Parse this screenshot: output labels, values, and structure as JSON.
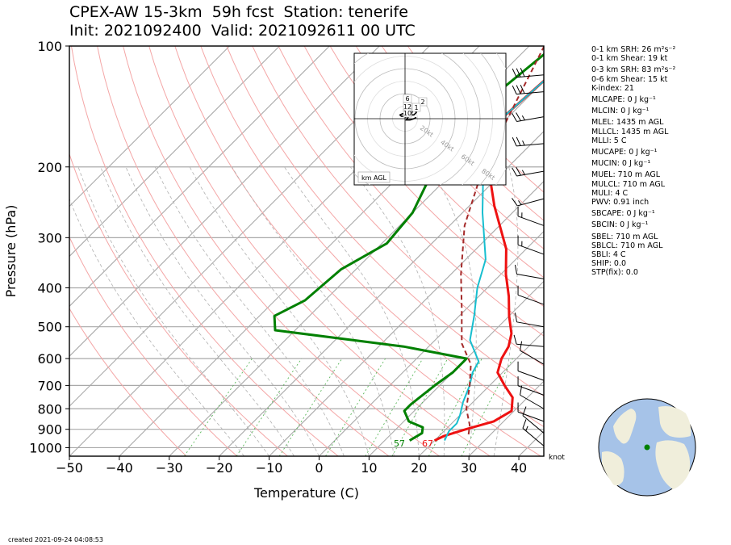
{
  "title": {
    "line1": "CPEX-AW 15-3km  59h fcst  Station: tenerife",
    "line2": "Init: 2021092400  Valid: 2021092611 00 UTC"
  },
  "chart_data": {
    "type": "line",
    "xlabel": "Temperature (C)",
    "ylabel": "Pressure (hPa)",
    "xlim": [
      -50,
      45
    ],
    "ylim": [
      1050,
      100
    ],
    "x_ticks": [
      "−50",
      "−40",
      "−30",
      "−20",
      "−10",
      "0",
      "10",
      "20",
      "30",
      "40"
    ],
    "x_tick_values": [
      -50,
      -40,
      -30,
      -20,
      -10,
      0,
      10,
      20,
      30,
      40
    ],
    "y_ticks": [
      "100",
      "200",
      "300",
      "400",
      "500",
      "600",
      "700",
      "800",
      "900",
      "1000"
    ],
    "y_tick_values": [
      100,
      200,
      300,
      400,
      500,
      600,
      700,
      800,
      900,
      1000
    ],
    "y_scale": "log",
    "grid": true,
    "series": [
      {
        "role": "temperature",
        "color": "#ee1111",
        "points": [
          [
            -22,
            100
          ],
          [
            -30,
            120
          ],
          [
            -31,
            150
          ],
          [
            -24,
            200
          ],
          [
            -15,
            250
          ],
          [
            -4,
            320
          ],
          [
            1,
            370
          ],
          [
            6,
            420
          ],
          [
            10,
            470
          ],
          [
            14,
            520
          ],
          [
            16,
            560
          ],
          [
            17,
            600
          ],
          [
            19,
            650
          ],
          [
            23,
            700
          ],
          [
            27,
            750
          ],
          [
            29.5,
            810
          ],
          [
            28,
            860
          ],
          [
            24,
            900
          ],
          [
            21,
            935
          ],
          [
            20,
            960
          ]
        ]
      },
      {
        "role": "dewpoint",
        "color": "#008000",
        "points": [
          [
            -35,
            100
          ],
          [
            -37,
            130
          ],
          [
            -36,
            170
          ],
          [
            -33,
            220
          ],
          [
            -30,
            260
          ],
          [
            -29,
            310
          ],
          [
            -33,
            360
          ],
          [
            -34,
            430
          ],
          [
            -37,
            470
          ],
          [
            -34,
            510
          ],
          [
            -5,
            560
          ],
          [
            10,
            600
          ],
          [
            10,
            650
          ],
          [
            9,
            700
          ],
          [
            8,
            780
          ],
          [
            8,
            810
          ],
          [
            11,
            860
          ],
          [
            15,
            890
          ],
          [
            16,
            920
          ],
          [
            15,
            960
          ]
        ]
      },
      {
        "role": "wetbulb",
        "color": "#17becf",
        "points": [
          [
            -22,
            100
          ],
          [
            -30,
            120
          ],
          [
            -31,
            150
          ],
          [
            -25,
            200
          ],
          [
            -16,
            260
          ],
          [
            -6,
            340
          ],
          [
            -2,
            400
          ],
          [
            3,
            470
          ],
          [
            7,
            540
          ],
          [
            13,
            610
          ],
          [
            14,
            650
          ],
          [
            16,
            700
          ],
          [
            18,
            770
          ],
          [
            20,
            830
          ],
          [
            21,
            870
          ],
          [
            21,
            910
          ],
          [
            22,
            960
          ]
        ]
      },
      {
        "role": "parcel",
        "color": "#a52a2a",
        "points": [
          [
            -37,
            100
          ],
          [
            -30,
            150
          ],
          [
            -25,
            200
          ],
          [
            -17,
            280
          ],
          [
            -8,
            370
          ],
          [
            -1,
            450
          ],
          [
            6,
            550
          ],
          [
            12,
            620
          ],
          [
            16,
            700
          ],
          [
            20,
            800
          ],
          [
            24,
            880
          ],
          [
            26,
            940
          ]
        ]
      }
    ],
    "isotherms": [
      -100,
      -90,
      -80,
      -70,
      -60,
      -50,
      -40,
      -30,
      -20,
      -10,
      0,
      10,
      20,
      30,
      40,
      50
    ],
    "dry_adiabats_theta_c": [
      -30,
      -20,
      -10,
      0,
      10,
      20,
      30,
      40,
      50,
      60,
      70,
      80,
      90,
      100,
      110,
      120,
      130
    ],
    "moist_adiabats_start_c": [
      -15,
      -10,
      -5,
      0,
      5,
      10,
      15,
      20,
      25,
      30,
      35
    ],
    "mixing_ratios": [
      0.4,
      1,
      2,
      4,
      7,
      10,
      16,
      24
    ],
    "surface_labels": {
      "dewpoint": "57",
      "temperature": "67"
    },
    "barb_unit": "knot",
    "wind_barbs": [
      {
        "p": 118,
        "speed": 30,
        "dir": 275
      },
      {
        "p": 130,
        "speed": 30,
        "dir": 275
      },
      {
        "p": 150,
        "speed": 25,
        "dir": 280
      },
      {
        "p": 175,
        "speed": 25,
        "dir": 275
      },
      {
        "p": 205,
        "speed": 25,
        "dir": 280
      },
      {
        "p": 240,
        "speed": 15,
        "dir": 285
      },
      {
        "p": 280,
        "speed": 15,
        "dir": 250
      },
      {
        "p": 330,
        "speed": 15,
        "dir": 250
      },
      {
        "p": 380,
        "speed": 10,
        "dir": 260
      },
      {
        "p": 440,
        "speed": 10,
        "dir": 250
      },
      {
        "p": 500,
        "speed": 10,
        "dir": 260
      },
      {
        "p": 560,
        "speed": 10,
        "dir": 265
      },
      {
        "p": 620,
        "speed": 10,
        "dir": 240
      },
      {
        "p": 680,
        "speed": 10,
        "dir": 250
      },
      {
        "p": 740,
        "speed": 10,
        "dir": 250
      },
      {
        "p": 800,
        "speed": 10,
        "dir": 240
      },
      {
        "p": 860,
        "speed": 10,
        "dir": 250
      },
      {
        "p": 920,
        "speed": 10,
        "dir": 230
      },
      {
        "p": 990,
        "speed": 15,
        "dir": 230
      }
    ],
    "hodograph": {
      "rings_kt": [
        20,
        40,
        60,
        80
      ],
      "ring_labels": [
        "20kt",
        "40kt",
        "60kt",
        "80kt"
      ],
      "height_labels": [
        "6",
        "2",
        "1",
        "12",
        "10"
      ],
      "footer_label": "km AGL",
      "trace_kt": [
        [
          1,
          1
        ],
        [
          -1,
          2
        ],
        [
          -3,
          2
        ],
        [
          -4,
          3
        ],
        [
          -2,
          4
        ],
        [
          3,
          3
        ],
        [
          7,
          3
        ],
        [
          9,
          5
        ],
        [
          8,
          8
        ],
        [
          8,
          12
        ],
        [
          7,
          8
        ],
        [
          5,
          4
        ],
        [
          3,
          2
        ],
        [
          1,
          -1
        ],
        [
          4,
          -1
        ],
        [
          7,
          0
        ],
        [
          9,
          1
        ]
      ]
    }
  },
  "indices": [
    "0-1 km SRH: 26 m²s⁻²",
    "0-1 km Shear: 19 kt",
    "0-3 km SRH: 83 m²s⁻²",
    "0-6 km Shear: 15 kt",
    "K-index: 21",
    "MLCAPE: 0 J kg⁻¹",
    "MLCIN: 0 J kg⁻¹",
    "MLEL: 1435 m AGL",
    "MLLCL: 1435 m AGL",
    "MLLI: 5 C",
    "MUCAPE: 0 J kg⁻¹",
    "MUCIN: 0 J kg⁻¹",
    "MUEL: 710 m AGL",
    "MULCL: 710 m AGL",
    "MULI: 4 C",
    "PWV: 0.91 inch",
    "SBCAPE: 0 J kg⁻¹",
    "SBCIN: 0 J kg⁻¹",
    "SBEL: 710 m AGL",
    "SBLCL: 710 m AGL",
    "SBLI: 4 C",
    "SHIP: 0.0",
    "STP(fix): 0.0"
  ],
  "created": "created 2021-09-24 04:08:53",
  "globe": {
    "ocean_color": "#a6c3e8",
    "land_color": "#f0eedb",
    "marker_color": "#008000"
  }
}
